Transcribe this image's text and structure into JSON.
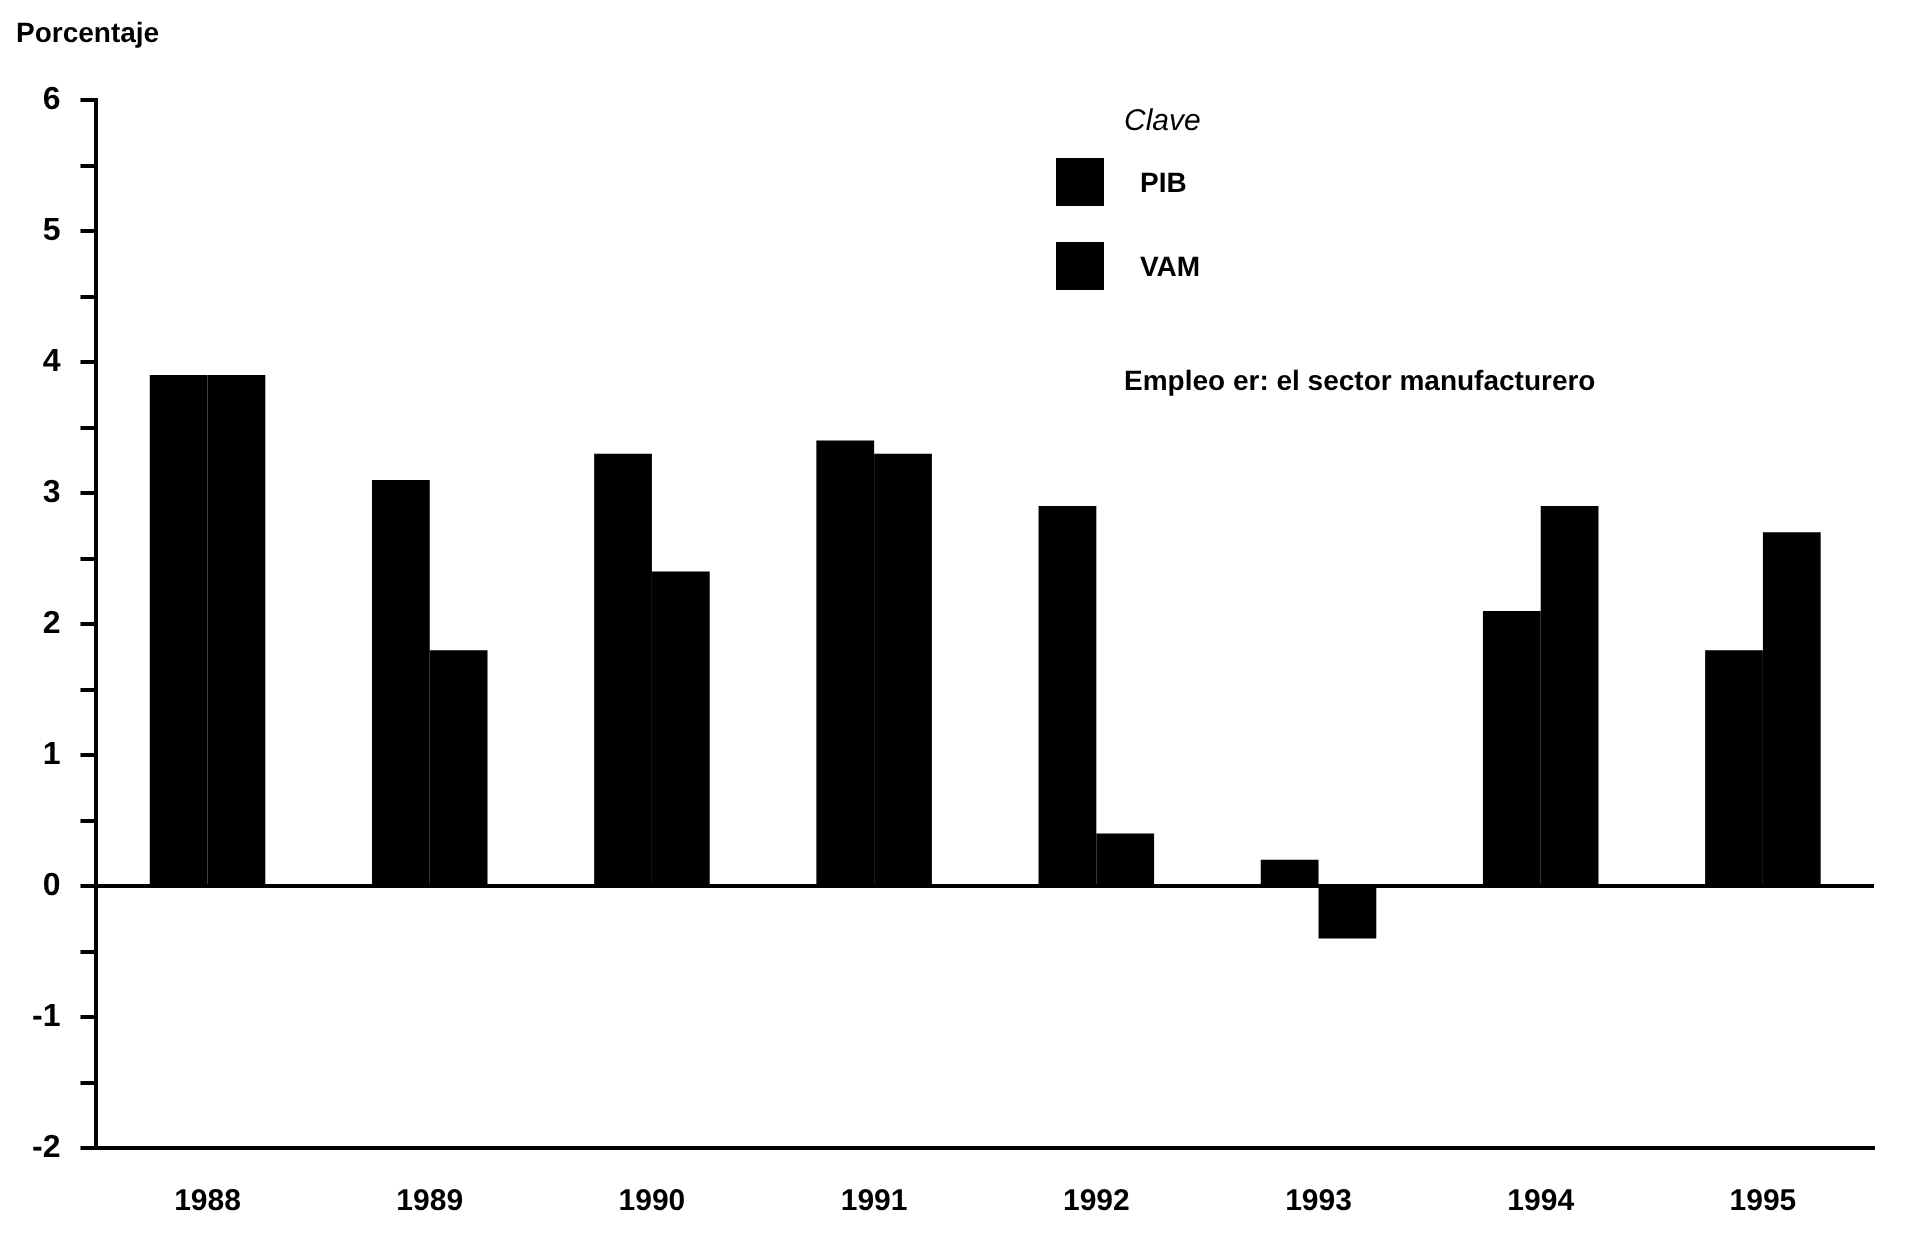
{
  "chart_data": {
    "type": "bar",
    "ylabel": "Porcentaje",
    "legend_title": "Clave",
    "legend": "top right",
    "grid": false,
    "categories": [
      "1988",
      "1989",
      "1990",
      "1991",
      "1992",
      "1993",
      "1994",
      "1995"
    ],
    "series": [
      {
        "name": "PIB",
        "color": "#000000",
        "values": [
          3.9,
          3.1,
          3.3,
          3.4,
          2.9,
          0.2,
          2.1,
          1.8
        ]
      },
      {
        "name": "VAM",
        "color": "#000000",
        "values": [
          3.9,
          1.8,
          2.4,
          3.3,
          0.4,
          -0.4,
          2.9,
          2.7
        ]
      }
    ],
    "ylim": [
      -2,
      6
    ],
    "yticks": [
      -2,
      {
        "value": -1.5,
        "label": null
      },
      -1,
      {
        "value": -0.5,
        "label": null
      },
      0,
      {
        "value": 0.5,
        "label": null
      },
      1,
      {
        "value": 1.5,
        "label": null
      },
      2,
      {
        "value": 2.5,
        "label": null
      },
      3,
      {
        "value": 3.5,
        "label": null
      },
      4,
      {
        "value": 4.5,
        "label": null
      },
      5,
      {
        "value": 5.5,
        "label": null
      },
      6
    ],
    "ref_lines": [
      {
        "axis": "y",
        "value": 0,
        "color": "#000000"
      }
    ],
    "annotations": [
      "Empleo er: el sector manufacturero"
    ]
  }
}
